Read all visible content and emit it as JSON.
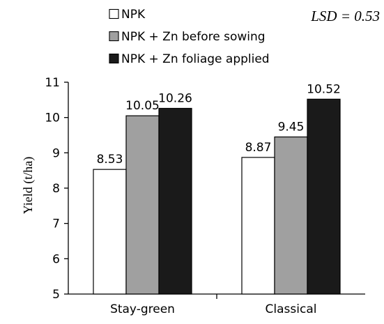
{
  "chart_data": {
    "type": "bar",
    "categories": [
      "Stay-green",
      "Classical"
    ],
    "series": [
      {
        "name": "NPK",
        "values": [
          8.53,
          8.87
        ],
        "color": "#ffffff"
      },
      {
        "name": "NPK + Zn before sowing",
        "values": [
          10.05,
          9.45
        ],
        "color": "#a0a0a0"
      },
      {
        "name": "NPK + Zn foliage applied",
        "values": [
          10.26,
          10.52
        ],
        "color": "#1a1a1a"
      }
    ],
    "data_labels": [
      [
        "8.53",
        "8.87"
      ],
      [
        "10.05",
        "9.45"
      ],
      [
        "10.26",
        "10.52"
      ]
    ],
    "ylabel": "Yield (t/ha)",
    "ylim": [
      5,
      11
    ],
    "yticks": [
      5,
      6,
      7,
      8,
      9,
      10,
      11
    ],
    "annotation": "LSD = 0.53",
    "grid": false,
    "legend_position": "top"
  }
}
